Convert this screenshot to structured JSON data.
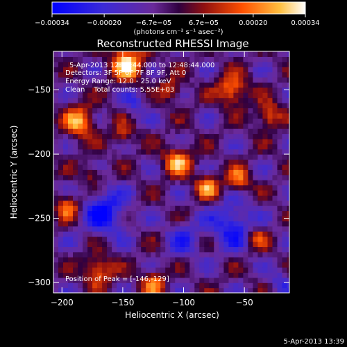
{
  "chart_data": {
    "type": "heatmap",
    "title": "Reconstructed RHESSI Image",
    "xlabel": "Heliocentric X (arcsec)",
    "ylabel": "Heliocentric Y (arcsec)",
    "xlim": [
      -207,
      -13
    ],
    "ylim": [
      -308,
      -120
    ],
    "xticks": [
      -200,
      -150,
      -100,
      -50
    ],
    "xtick_labels": [
      "−200",
      "−150",
      "−100",
      "−50"
    ],
    "yticks": [
      -150,
      -200,
      -250,
      -300
    ],
    "ytick_labels": [
      "−150",
      "−200",
      "−250",
      "−300"
    ],
    "colorbar": {
      "range": [
        -0.00034,
        0.00034
      ],
      "ticks": [
        -0.00034,
        -0.0002,
        -6.7e-05,
        6.7e-05,
        0.0002,
        0.00034
      ],
      "tick_labels": [
        "−0.00034",
        "−0.00020",
        "−6.7e−05",
        "6.7e−05",
        "0.00020",
        "0.00034"
      ],
      "units": "(photons cm⁻² s⁻¹ asec⁻²)"
    },
    "annotations": [
      "5-Apr-2013 12:46:44.000 to 12:48:44.000",
      "Detectors: 3F 5F 6F 7F 8F 9F, Att 0",
      "Energy Range: 12.0 - 25.0 keV",
      "Clean    Total counts: 5.55E+03"
    ],
    "peak_label": "Position of Peak = [-146,-129]",
    "peak": [
      -146,
      -129
    ],
    "blobs": [
      {
        "x": -146,
        "y": -129,
        "r": 14,
        "v": 1.0
      },
      {
        "x": -185,
        "y": -175,
        "r": 13,
        "v": 0.85
      },
      {
        "x": -60,
        "y": -150,
        "r": 12,
        "v": 0.85
      },
      {
        "x": -30,
        "y": -170,
        "r": 10,
        "v": 0.75
      },
      {
        "x": -105,
        "y": -205,
        "r": 12,
        "v": 0.8
      },
      {
        "x": -80,
        "y": -225,
        "r": 10,
        "v": 0.75
      },
      {
        "x": -55,
        "y": -220,
        "r": 10,
        "v": 0.7
      },
      {
        "x": -195,
        "y": -240,
        "r": 10,
        "v": 0.7
      },
      {
        "x": -170,
        "y": -290,
        "r": 12,
        "v": 0.75
      },
      {
        "x": -125,
        "y": -300,
        "r": 10,
        "v": 0.7
      },
      {
        "x": -150,
        "y": -185,
        "r": 9,
        "v": 0.55
      },
      {
        "x": -40,
        "y": -265,
        "r": 9,
        "v": 0.55
      },
      {
        "x": -110,
        "y": -150,
        "r": 9,
        "v": 0.6
      },
      {
        "x": -175,
        "y": -215,
        "r": 8,
        "v": 0.5
      }
    ],
    "negative_regions": [
      {
        "x": -165,
        "y": -245,
        "r": 18,
        "v": -0.75
      },
      {
        "x": -60,
        "y": -255,
        "r": 18,
        "v": -0.7
      },
      {
        "x": -140,
        "y": -160,
        "r": 10,
        "v": -0.4
      },
      {
        "x": -100,
        "y": -265,
        "r": 14,
        "v": -0.45
      },
      {
        "x": -20,
        "y": -300,
        "r": 10,
        "v": -0.4
      }
    ]
  },
  "footer_date": "5-Apr-2013 13:39"
}
